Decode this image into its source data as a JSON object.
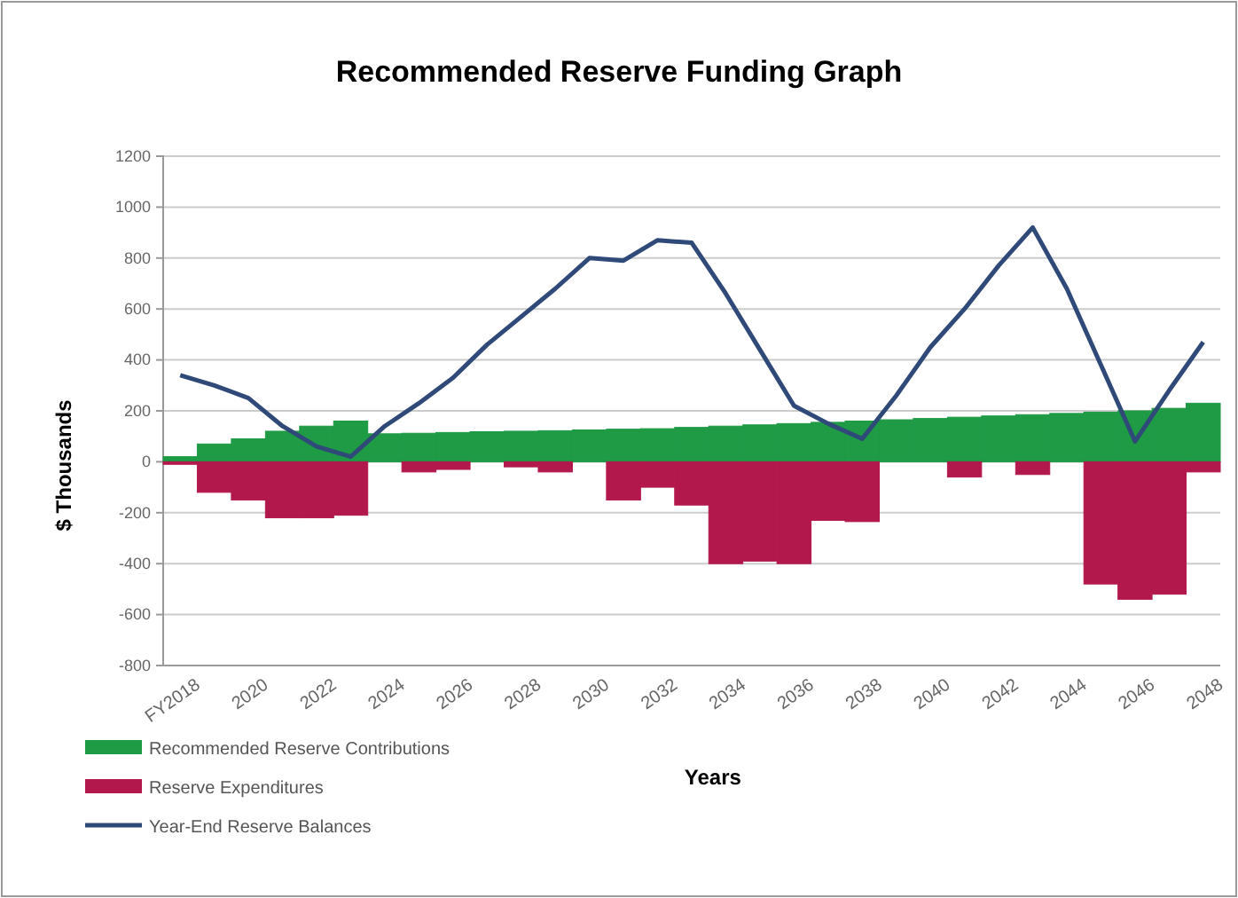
{
  "chart_data": {
    "type": "bar",
    "title": "Recommended Reserve Funding Graph",
    "xlabel": "Years",
    "ylabel": "$ Thousands",
    "categories": [
      "FY2018",
      null,
      "2020",
      null,
      "2022",
      null,
      "2024",
      null,
      "2026",
      null,
      "2028",
      null,
      "2030",
      null,
      "2032",
      null,
      "2034",
      null,
      "2036",
      null,
      "2038",
      null,
      "2040",
      null,
      "2042",
      null,
      "2044",
      null,
      "2046",
      null,
      "2048"
    ],
    "stacked": true,
    "series": [
      {
        "name": "Recommended Reserve Contributions",
        "color": "#1f9a45",
        "values": [
          20,
          70,
          90,
          120,
          140,
          160,
          110,
          112,
          115,
          118,
          120,
          122,
          125,
          128,
          130,
          135,
          140,
          145,
          150,
          155,
          160,
          165,
          170,
          175,
          180,
          185,
          190,
          195,
          200,
          210,
          230
        ]
      },
      {
        "name": "Reserve Expenditures",
        "color": "#b3184c",
        "values": [
          -10,
          -120,
          -150,
          -220,
          -220,
          -210,
          0,
          -40,
          -30,
          0,
          -20,
          -40,
          0,
          -150,
          -100,
          -170,
          -400,
          -390,
          -400,
          -230,
          -235,
          0,
          0,
          -60,
          0,
          -50,
          0,
          -480,
          -540,
          -520,
          -40
        ]
      },
      {
        "name": "Year-End Reserve Balances",
        "type": "line",
        "color": "#2f4a78",
        "values": [
          340,
          300,
          250,
          140,
          60,
          20,
          140,
          230,
          330,
          460,
          570,
          680,
          800,
          790,
          870,
          860,
          660,
          440,
          220,
          150,
          90,
          260,
          450,
          600,
          770,
          920,
          680,
          380,
          80,
          280,
          470
        ]
      }
    ],
    "ylim": [
      -800,
      1200
    ],
    "yticks": [
      -800,
      -600,
      -400,
      -200,
      0,
      200,
      400,
      600,
      800,
      1000,
      1200
    ],
    "grid": "y",
    "legend": "bottom left",
    "marker": "none",
    "line_style": "solid"
  }
}
